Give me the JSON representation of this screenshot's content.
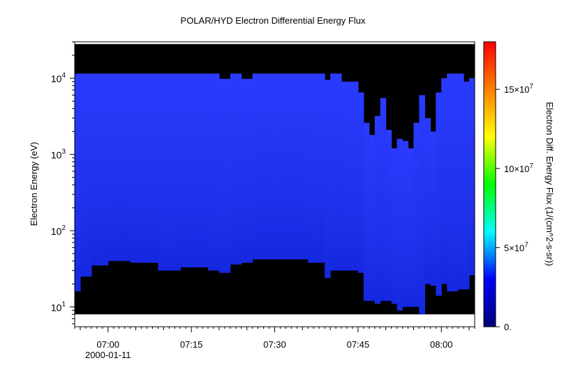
{
  "chart_data": {
    "type": "heatmap",
    "title": "POLAR/HYD  Electron Differential Energy Flux",
    "ylabel": "Electron Energy (eV)",
    "y_scale": "log",
    "ylim": [
      5.5,
      30000
    ],
    "y_ticks": [
      {
        "value": 10,
        "base": "10",
        "exp": "1"
      },
      {
        "value": 100,
        "base": "10",
        "exp": "2"
      },
      {
        "value": 1000,
        "base": "10",
        "exp": "3"
      },
      {
        "value": 10000,
        "base": "10",
        "exp": "4"
      }
    ],
    "x_range": [
      "06:54",
      "08:06"
    ],
    "x_ticks": [
      {
        "time": "07:00",
        "label": "07:00",
        "sublabel": "2000-01-11"
      },
      {
        "time": "07:15",
        "label": "07:15",
        "sublabel": ""
      },
      {
        "time": "07:30",
        "label": "07:30",
        "sublabel": ""
      },
      {
        "time": "07:45",
        "label": "07:45",
        "sublabel": ""
      },
      {
        "time": "08:00",
        "label": "08:00",
        "sublabel": ""
      }
    ],
    "colorbar": {
      "label": "Electron Diff. Energy Flux (1/(cm^2-s-sr))",
      "range": [
        0,
        180000000
      ],
      "ticks": [
        {
          "value": 0,
          "label": "0.",
          "base": "",
          "exp": ""
        },
        {
          "value": 50000000,
          "label": "",
          "base": "5×10",
          "exp": "7"
        },
        {
          "value": 100000000,
          "label": "",
          "base": "10×10",
          "exp": "7"
        },
        {
          "value": 150000000,
          "label": "",
          "base": "15×10",
          "exp": "7"
        }
      ],
      "colors": [
        "#00007a",
        "#0000ff",
        "#00ffff",
        "#00ff00",
        "#ffff00",
        "#ff8000",
        "#ff0000"
      ]
    },
    "energy_limits": {
      "data_top": 28000,
      "data_bottom": 8
    },
    "fill_value_color": "#000000",
    "dominant_flux_color": "#1f2fe8",
    "segments": [
      {
        "t0": "06:54",
        "t1": "06:55",
        "emin": 16,
        "emax": 11500
      },
      {
        "t0": "06:55",
        "t1": "06:57",
        "emin": 25,
        "emax": 11500
      },
      {
        "t0": "06:57",
        "t1": "07:00",
        "emin": 35,
        "emax": 11500
      },
      {
        "t0": "07:00",
        "t1": "07:04",
        "emin": 40,
        "emax": 11500
      },
      {
        "t0": "07:04",
        "t1": "07:09",
        "emin": 38,
        "emax": 11500
      },
      {
        "t0": "07:09",
        "t1": "07:13",
        "emin": 30,
        "emax": 11500
      },
      {
        "t0": "07:13",
        "t1": "07:18",
        "emin": 33,
        "emax": 11500
      },
      {
        "t0": "07:18",
        "t1": "07:20",
        "emin": 30,
        "emax": 11500
      },
      {
        "t0": "07:20",
        "t1": "07:22",
        "emin": 28,
        "emax": 9800
      },
      {
        "t0": "07:22",
        "t1": "07:24",
        "emin": 36,
        "emax": 11500
      },
      {
        "t0": "07:24",
        "t1": "07:26",
        "emin": 38,
        "emax": 9800
      },
      {
        "t0": "07:26",
        "t1": "07:31",
        "emin": 42,
        "emax": 11500
      },
      {
        "t0": "07:31",
        "t1": "07:36",
        "emin": 42,
        "emax": 11500
      },
      {
        "t0": "07:36",
        "t1": "07:39",
        "emin": 38,
        "emax": 11500
      },
      {
        "t0": "07:39",
        "t1": "07:40",
        "emin": 24,
        "emax": 9500
      },
      {
        "t0": "07:40",
        "t1": "07:42",
        "emin": 30,
        "emax": 11500
      },
      {
        "t0": "07:42",
        "t1": "07:45",
        "emin": 30,
        "emax": 9000
      },
      {
        "t0": "07:45",
        "t1": "07:46",
        "emin": 28,
        "emax": 6500
      },
      {
        "t0": "07:46",
        "t1": "07:47",
        "emin": 12,
        "emax": 2600
      },
      {
        "t0": "07:47",
        "t1": "07:48",
        "emin": 12,
        "emax": 1800
      },
      {
        "t0": "07:48",
        "t1": "07:49",
        "emin": 11,
        "emax": 3200
      },
      {
        "t0": "07:49",
        "t1": "07:50",
        "emin": 12,
        "emax": 5500
      },
      {
        "t0": "07:50",
        "t1": "07:51",
        "emin": 12,
        "emax": 2100
      },
      {
        "t0": "07:51",
        "t1": "07:52",
        "emin": 11,
        "emax": 1200
      },
      {
        "t0": "07:52",
        "t1": "07:53",
        "emin": 9,
        "emax": 1600
      },
      {
        "t0": "07:53",
        "t1": "07:54",
        "emin": 10,
        "emax": 1500
      },
      {
        "t0": "07:54",
        "t1": "07:55",
        "emin": 10,
        "emax": 1200
      },
      {
        "t0": "07:55",
        "t1": "07:56",
        "emin": 10,
        "emax": 2600
      },
      {
        "t0": "07:56",
        "t1": "07:57",
        "emin": 8,
        "emax": 6000
      },
      {
        "t0": "07:57",
        "t1": "07:58",
        "emin": 20,
        "emax": 3000
      },
      {
        "t0": "07:58",
        "t1": "07:59",
        "emin": 19,
        "emax": 2000
      },
      {
        "t0": "07:59",
        "t1": "08:00",
        "emin": 14,
        "emax": 6500
      },
      {
        "t0": "08:00",
        "t1": "08:01",
        "emin": 20,
        "emax": 10000
      },
      {
        "t0": "08:01",
        "t1": "08:03",
        "emin": 16,
        "emax": 11500
      },
      {
        "t0": "08:03",
        "t1": "08:04",
        "emin": 17,
        "emax": 11500
      },
      {
        "t0": "08:04",
        "t1": "08:05",
        "emin": 17,
        "emax": 9000
      },
      {
        "t0": "08:05",
        "t1": "08:06",
        "emin": 26,
        "emax": 10000
      }
    ]
  }
}
